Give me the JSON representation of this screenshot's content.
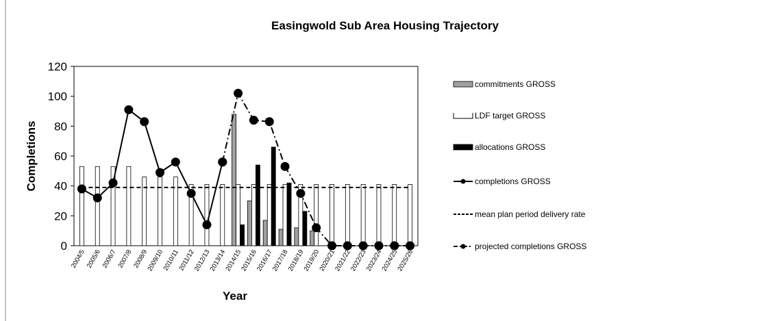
{
  "chart_data": {
    "type": "bar",
    "title": "Easingwold Sub Area Housing Trajectory",
    "x_label": "Year",
    "y_label": "Completions",
    "categories": [
      "2004/5",
      "2005/6",
      "2006/7",
      "2007/8",
      "2008/9",
      "2009/10",
      "2010/11",
      "2011/12",
      "2012/13",
      "2013/14",
      "2014/15",
      "2015/16",
      "2016/17",
      "2017/18",
      "2018/19",
      "2019/20",
      "2020/21",
      "2021/22",
      "2022/23",
      "2023/24",
      "2024/25",
      "2025/26"
    ],
    "ylim": [
      0,
      120
    ],
    "yticks": [
      0,
      20,
      40,
      60,
      80,
      100,
      120
    ],
    "series": [
      {
        "name": "commitments GROSS",
        "type": "bar",
        "color": "#a0a0a0",
        "values": [
          null,
          null,
          null,
          null,
          null,
          null,
          null,
          null,
          null,
          null,
          88,
          30,
          17,
          11,
          12,
          10,
          null,
          null,
          null,
          null,
          null,
          null
        ]
      },
      {
        "name": "LDF target GROSS",
        "type": "bar",
        "color": "#ffffff",
        "values": [
          53,
          53,
          53,
          53,
          46,
          46,
          46,
          41,
          41,
          41,
          41,
          41,
          41,
          41,
          41,
          41,
          41,
          41,
          41,
          41,
          41,
          41
        ]
      },
      {
        "name": "allocations GROSS",
        "type": "bar",
        "color": "#000000",
        "values": [
          null,
          null,
          null,
          null,
          null,
          null,
          null,
          null,
          null,
          null,
          14,
          54,
          66,
          42,
          23,
          null,
          null,
          null,
          null,
          null,
          null,
          null
        ]
      },
      {
        "name": "completions GROSS",
        "type": "line",
        "color": "#000000",
        "line_style": "solid",
        "marker": true,
        "values": [
          38,
          32,
          42,
          91,
          83,
          49,
          56,
          35,
          14,
          56,
          null,
          null,
          null,
          null,
          null,
          null,
          null,
          null,
          null,
          null,
          null,
          null
        ]
      },
      {
        "name": "mean plan period delivery rate",
        "type": "line",
        "color": "#000000",
        "line_style": "dashed",
        "marker": false,
        "values": [
          39,
          39,
          39,
          39,
          39,
          39,
          39,
          39,
          39,
          39,
          39,
          39,
          39,
          39,
          39,
          39,
          39,
          39,
          39,
          39,
          39,
          39
        ]
      },
      {
        "name": "projected completions GROSS",
        "type": "line",
        "color": "#000000",
        "line_style": "dashdot",
        "marker": true,
        "values": [
          null,
          null,
          null,
          null,
          null,
          null,
          null,
          null,
          null,
          56,
          102,
          84,
          83,
          53,
          35,
          12,
          0,
          0,
          0,
          0,
          0,
          0
        ]
      }
    ]
  }
}
